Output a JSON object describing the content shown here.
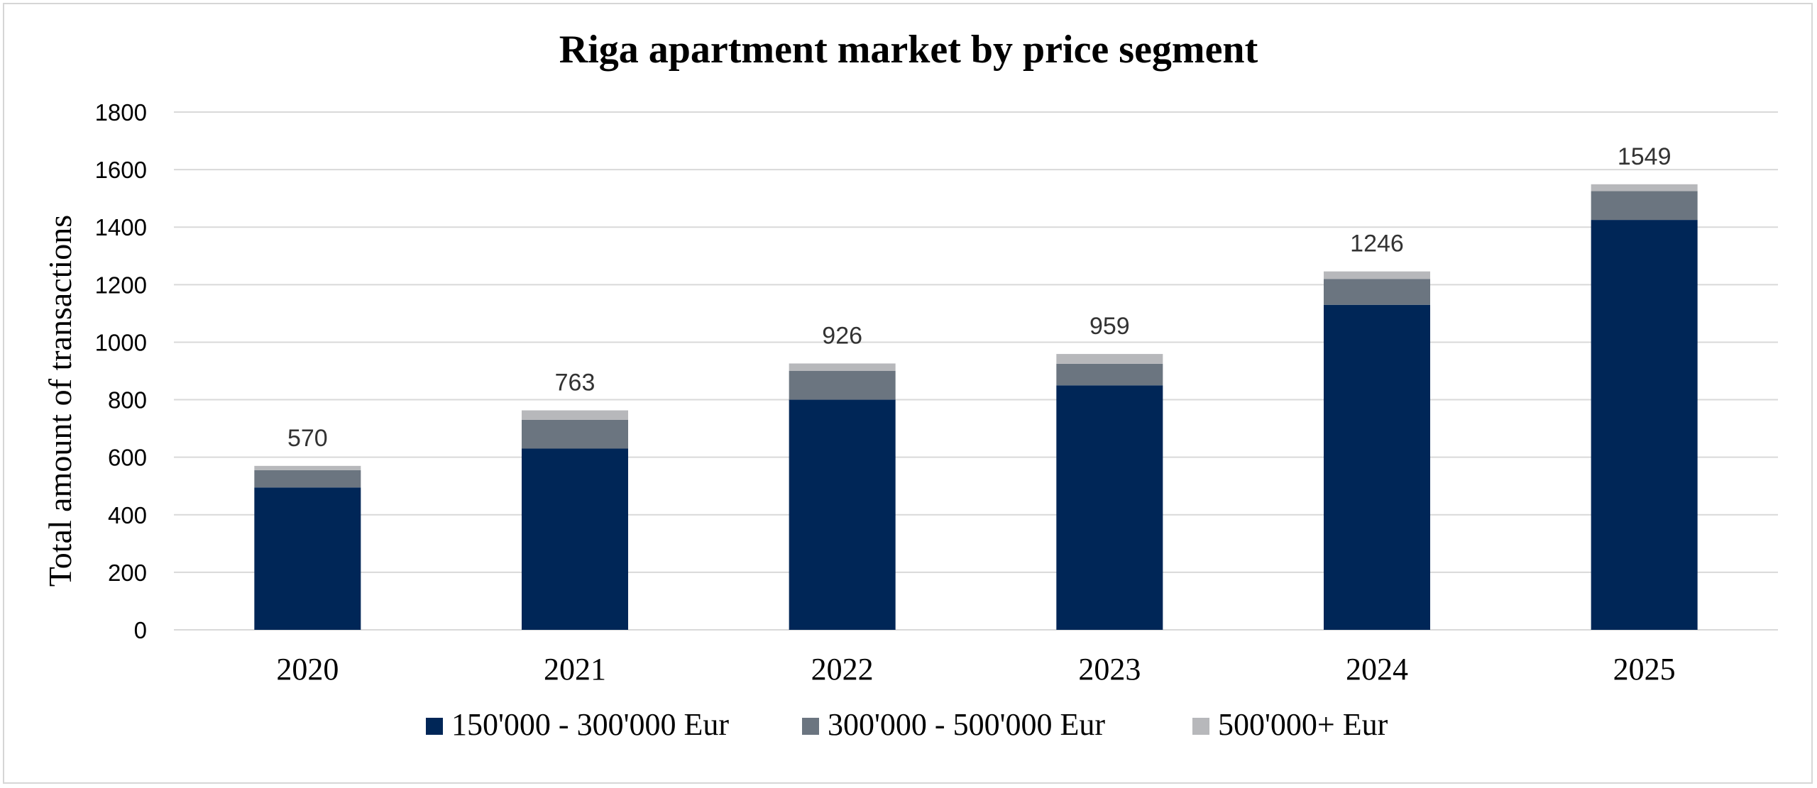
{
  "chart_data": {
    "type": "bar",
    "stacked": true,
    "title": "Riga apartment market by price segment",
    "xlabel": "",
    "ylabel": "Total amount of transactions",
    "categories": [
      "2020",
      "2021",
      "2022",
      "2023",
      "2024",
      "2025"
    ],
    "ylim": [
      0,
      1800
    ],
    "yticks": [
      0,
      200,
      400,
      600,
      800,
      1000,
      1200,
      1400,
      1600,
      1800
    ],
    "grid": true,
    "legend_position": "bottom",
    "series": [
      {
        "name": "150'000 - 300'000 Eur",
        "color": "#002657",
        "values": [
          495,
          630,
          800,
          850,
          1130,
          1425
        ]
      },
      {
        "name": "300'000 - 500'000 Eur",
        "color": "#6b7580",
        "values": [
          60,
          100,
          100,
          75,
          90,
          100
        ]
      },
      {
        "name": "500'000+ Eur",
        "color": "#b7b8bb",
        "values": [
          15,
          33,
          26,
          34,
          26,
          24
        ]
      }
    ],
    "totals": [
      570,
      763,
      926,
      959,
      1246,
      1549
    ]
  }
}
